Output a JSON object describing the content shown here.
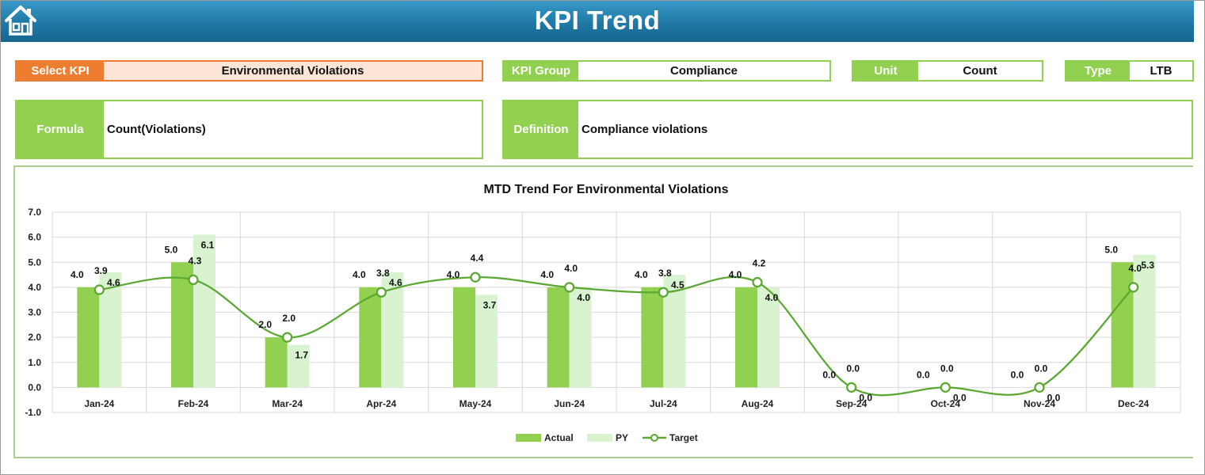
{
  "page": {
    "title": "KPI Trend"
  },
  "fields": {
    "select_kpi": {
      "label": "Select KPI",
      "value": "Environmental Violations"
    },
    "kpi_group": {
      "label": "KPI Group",
      "value": "Compliance"
    },
    "unit": {
      "label": "Unit",
      "value": "Count"
    },
    "type": {
      "label": "Type",
      "value": "LTB"
    },
    "formula": {
      "label": "Formula",
      "value": "Count(Violations)"
    },
    "definition": {
      "label": "Definition",
      "value": "Compliance violations"
    }
  },
  "colors": {
    "actual": "#92d050",
    "py": "#d9f2d0",
    "target": "#5aa832",
    "gridline": "#d9d9d9",
    "header": "#1f78a5",
    "accent_orange": "#ed7d31"
  },
  "icons": {
    "home": "home-icon"
  },
  "chart_data": {
    "type": "bar",
    "title": "MTD Trend For Environmental Violations",
    "categories": [
      "Jan-24",
      "Feb-24",
      "Mar-24",
      "Apr-24",
      "May-24",
      "Jun-24",
      "Jul-24",
      "Aug-24",
      "Sep-24",
      "Oct-24",
      "Nov-24",
      "Dec-24"
    ],
    "series": [
      {
        "name": "Actual",
        "type": "bar",
        "values": [
          4.0,
          5.0,
          2.0,
          4.0,
          4.0,
          4.0,
          4.0,
          4.0,
          0.0,
          0.0,
          0.0,
          5.0
        ]
      },
      {
        "name": "PY",
        "type": "bar",
        "values": [
          4.6,
          6.1,
          1.7,
          4.6,
          3.7,
          4.0,
          4.5,
          4.0,
          0.0,
          0.0,
          0.0,
          5.3
        ]
      },
      {
        "name": "Target",
        "type": "line",
        "values": [
          3.9,
          4.3,
          2.0,
          3.8,
          4.4,
          4.0,
          3.8,
          4.2,
          0.0,
          0.0,
          0.0,
          4.0
        ]
      }
    ],
    "y_ticks": [
      "7.0",
      "6.0",
      "5.0",
      "4.0",
      "3.0",
      "2.0",
      "1.0",
      "0.0",
      "-1.0"
    ],
    "ylim": [
      -1,
      7
    ],
    "grid": true,
    "legend_position": "bottom"
  }
}
